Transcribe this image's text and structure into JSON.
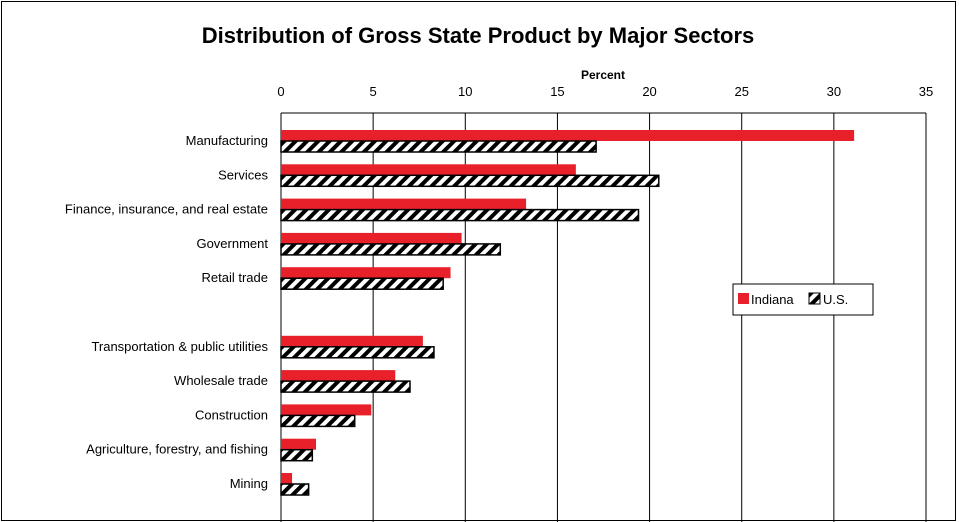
{
  "chart_data": {
    "type": "bar",
    "orientation": "horizontal",
    "title": "Distribution of Gross State Product by Major Sectors",
    "xlabel": "Percent",
    "xlim": [
      0,
      35
    ],
    "xticks": [
      0,
      5,
      10,
      15,
      20,
      25,
      30,
      35
    ],
    "grid": true,
    "legend_position": "right",
    "categories": [
      "Manufacturing",
      "Services",
      "Finance, insurance, and real estate",
      "Government",
      "Retail trade",
      "",
      "Transportation & public utilities",
      "Wholesale trade",
      "Construction",
      "Agriculture, forestry, and fishing",
      "Mining"
    ],
    "series": [
      {
        "name": "Indiana",
        "color": "#e8202a",
        "pattern": "solid",
        "values": [
          31.1,
          16.0,
          13.3,
          9.8,
          9.2,
          null,
          7.7,
          6.2,
          4.9,
          1.9,
          0.6
        ]
      },
      {
        "name": "U.S.",
        "color": "#000000",
        "pattern": "diagonal-hatch",
        "values": [
          17.1,
          20.5,
          19.4,
          11.9,
          8.8,
          null,
          8.3,
          7.0,
          4.0,
          1.7,
          1.5
        ]
      }
    ]
  }
}
